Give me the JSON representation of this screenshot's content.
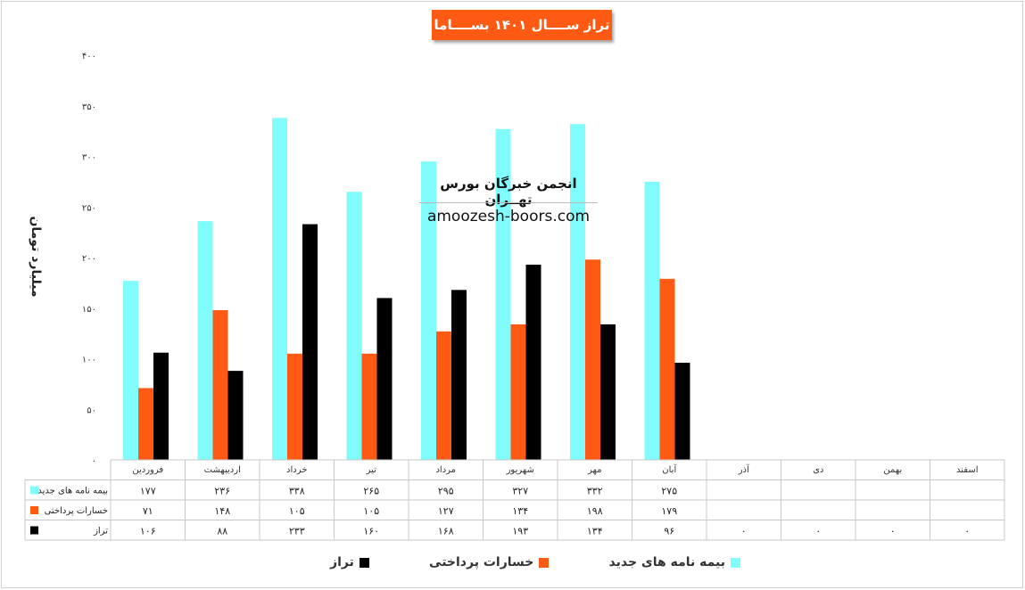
{
  "chart_data": {
    "type": "bar",
    "title": "تراز ســــال ۱۴۰۱ بســــاما",
    "ylabel": "میلیارد تومان",
    "ylim": [
      0,
      400
    ],
    "yticks": [
      "۰",
      "۵۰",
      "۱۰۰",
      "۱۵۰",
      "۲۰۰",
      "۲۵۰",
      "۳۰۰",
      "۳۵۰",
      "۴۰۰"
    ],
    "ytick_values": [
      0,
      50,
      100,
      150,
      200,
      250,
      300,
      350,
      400
    ],
    "categories": [
      "فروردین",
      "اردیبهشت",
      "خرداد",
      "تیر",
      "مرداد",
      "شهریور",
      "مهر",
      "آبان",
      "آذر",
      "دی",
      "بهمن",
      "اسفند"
    ],
    "series": [
      {
        "name": "بیمه نامه های جدید",
        "color": "#80fcfc",
        "values": [
          177,
          236,
          338,
          265,
          295,
          327,
          332,
          275,
          null,
          null,
          null,
          null
        ],
        "labels": [
          "۱۷۷",
          "۲۳۶",
          "۳۳۸",
          "۲۶۵",
          "۲۹۵",
          "۳۲۷",
          "۳۳۲",
          "۲۷۵",
          "",
          "",
          "",
          ""
        ]
      },
      {
        "name": "خسارات پرداختی",
        "color": "#ff5a14",
        "values": [
          71,
          148,
          105,
          105,
          127,
          134,
          198,
          179,
          null,
          null,
          null,
          null
        ],
        "labels": [
          "۷۱",
          "۱۴۸",
          "۱۰۵",
          "۱۰۵",
          "۱۲۷",
          "۱۳۴",
          "۱۹۸",
          "۱۷۹",
          "",
          "",
          "",
          ""
        ]
      },
      {
        "name": "تراز",
        "color": "#000000",
        "values": [
          106,
          88,
          233,
          160,
          168,
          193,
          134,
          96,
          0,
          0,
          0,
          0
        ],
        "labels": [
          "۱۰۶",
          "۸۸",
          "۲۳۳",
          "۱۶۰",
          "۱۶۸",
          "۱۹۳",
          "۱۳۴",
          "۹۶",
          "۰",
          "۰",
          "۰",
          "۰"
        ]
      }
    ],
    "legend_position": "bottom",
    "grid": false,
    "data_table": true
  },
  "watermark": {
    "name": "انجمن خبرگان بورس تهــران",
    "url": "amoozesh-boors.com"
  }
}
